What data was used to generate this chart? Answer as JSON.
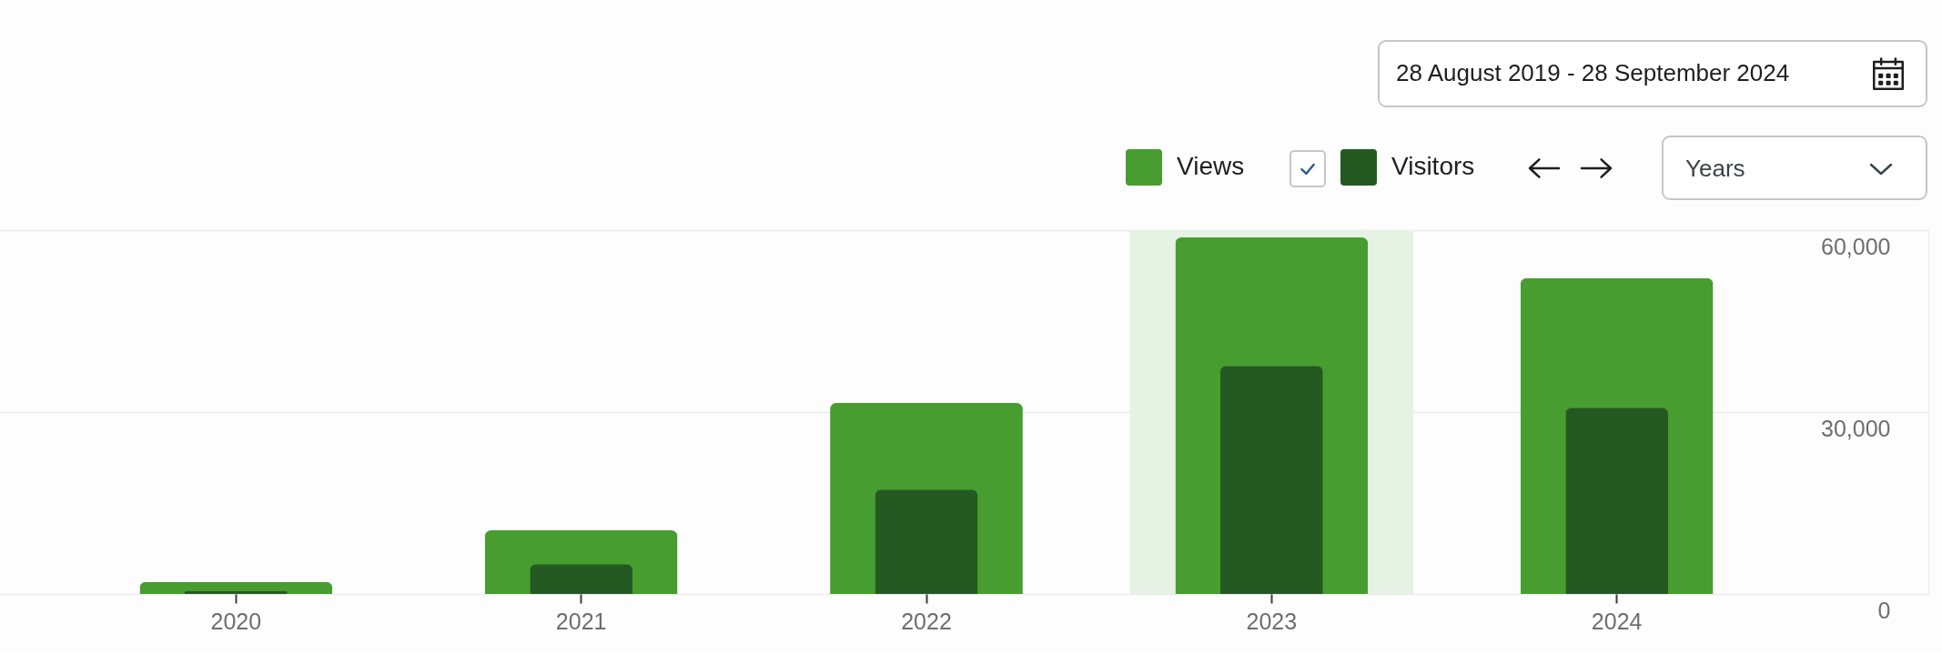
{
  "chart_data": {
    "type": "bar",
    "categories": [
      "2020",
      "2021",
      "2022",
      "2023",
      "2024"
    ],
    "series": [
      {
        "name": "Views",
        "color": "#479d2f",
        "values": [
          2000,
          10500,
          31500,
          58800,
          52100
        ]
      },
      {
        "name": "Visitors",
        "color": "#245a22",
        "values": [
          500,
          4900,
          17200,
          37600,
          30700
        ]
      }
    ],
    "ylim": [
      0,
      60000
    ],
    "yticks": [
      {
        "value": 0,
        "label": "0"
      },
      {
        "value": 30000,
        "label": "30,000"
      },
      {
        "value": 60000,
        "label": "60,000"
      }
    ],
    "grid": "y",
    "legend": "top right",
    "bands": [
      {
        "axis": "x",
        "from": "2023",
        "to": "2023",
        "color": "#e6f2e3"
      }
    ],
    "annotations": [
      "28 August 2019 - 28 September 2024",
      "Years"
    ]
  }
}
